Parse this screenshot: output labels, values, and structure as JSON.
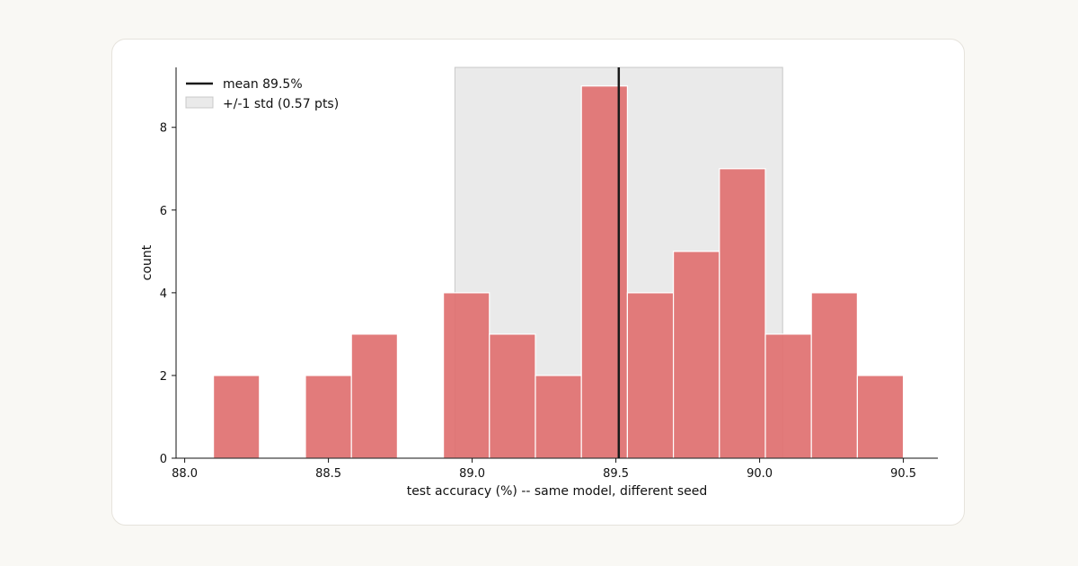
{
  "chart_data": {
    "type": "bar",
    "subtype": "histogram",
    "xlabel": "test accuracy (%) -- same model, different seed",
    "ylabel": "count",
    "xlim": [
      87.97,
      90.62
    ],
    "ylim": [
      0,
      9.45
    ],
    "xticks": [
      "88.0",
      "88.5",
      "89.0",
      "89.5",
      "90.0",
      "90.5"
    ],
    "yticks": [
      "0",
      "2",
      "4",
      "6",
      "8"
    ],
    "bins": [
      {
        "start": 88.1,
        "end": 88.26,
        "count": 2
      },
      {
        "start": 88.26,
        "end": 88.42,
        "count": 0
      },
      {
        "start": 88.42,
        "end": 88.58,
        "count": 2
      },
      {
        "start": 88.58,
        "end": 88.74,
        "count": 3
      },
      {
        "start": 88.74,
        "end": 88.9,
        "count": 0
      },
      {
        "start": 88.9,
        "end": 89.06,
        "count": 4
      },
      {
        "start": 89.06,
        "end": 89.22,
        "count": 3
      },
      {
        "start": 89.22,
        "end": 89.38,
        "count": 2
      },
      {
        "start": 89.38,
        "end": 89.54,
        "count": 9
      },
      {
        "start": 89.54,
        "end": 89.7,
        "count": 4
      },
      {
        "start": 89.7,
        "end": 89.86,
        "count": 5
      },
      {
        "start": 89.86,
        "end": 90.02,
        "count": 7
      },
      {
        "start": 90.02,
        "end": 90.18,
        "count": 3
      },
      {
        "start": 90.18,
        "end": 90.34,
        "count": 4
      },
      {
        "start": 90.34,
        "end": 90.5,
        "count": 2
      }
    ],
    "mean": 89.51,
    "std": 0.57,
    "legend": {
      "position": "top-left",
      "entries": [
        {
          "label": "mean 89.5%",
          "kind": "line"
        },
        {
          "label": "+/-1 std (0.57 pts)",
          "kind": "patch"
        }
      ]
    },
    "colors": {
      "bar": "#e07070",
      "bar_edge": "#ffffff",
      "mean_line": "#1a1a1a",
      "std_band": "#d8d8d8"
    },
    "grid": false
  }
}
